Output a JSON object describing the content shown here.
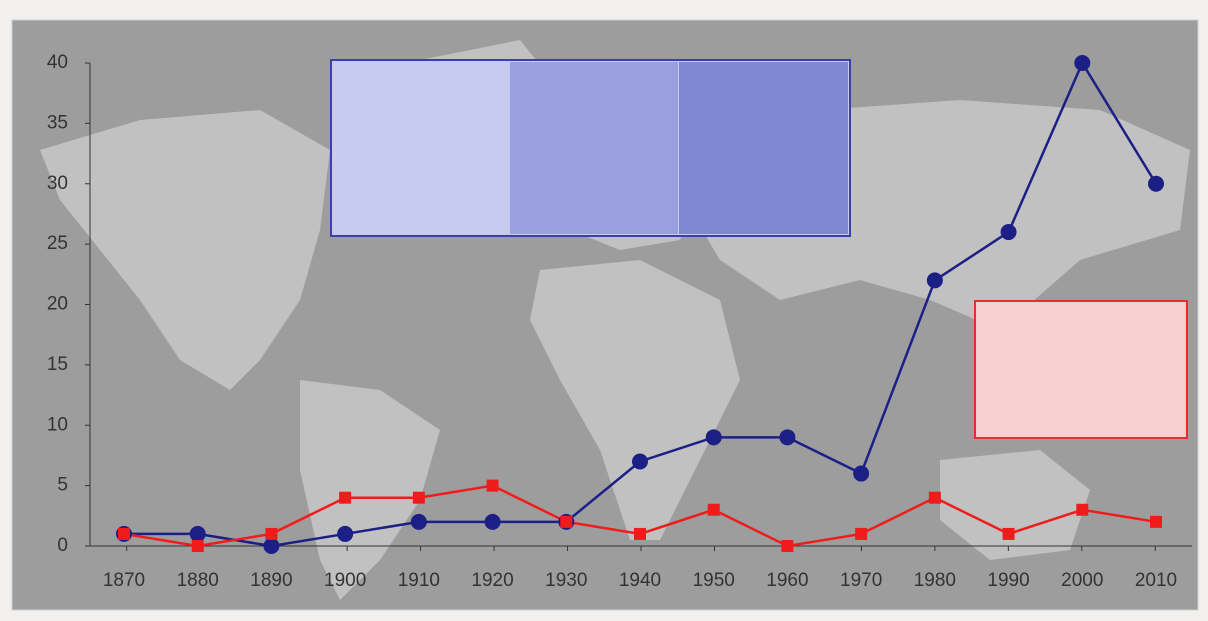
{
  "chart_data": {
    "type": "line",
    "categories": [
      "1870",
      "1880",
      "1890",
      "1900",
      "1910",
      "1920",
      "1930",
      "1940",
      "1950",
      "1960",
      "1970",
      "1980",
      "1990",
      "2000",
      "2010"
    ],
    "series": [
      {
        "color": "#1c1f86",
        "marker": "circle",
        "values": [
          1,
          1,
          0,
          1,
          2,
          2,
          2,
          7,
          9,
          9,
          6,
          22,
          26,
          40,
          30
        ]
      },
      {
        "color": "#f01c1c",
        "marker": "square",
        "values": [
          1,
          0,
          1,
          4,
          4,
          5,
          2,
          1,
          3,
          0,
          1,
          4,
          1,
          3,
          2
        ]
      }
    ],
    "ylim": [
      0,
      40
    ],
    "yticks": [
      0,
      5,
      10,
      15,
      20,
      25,
      30,
      35,
      40
    ],
    "grid": false
  }
}
